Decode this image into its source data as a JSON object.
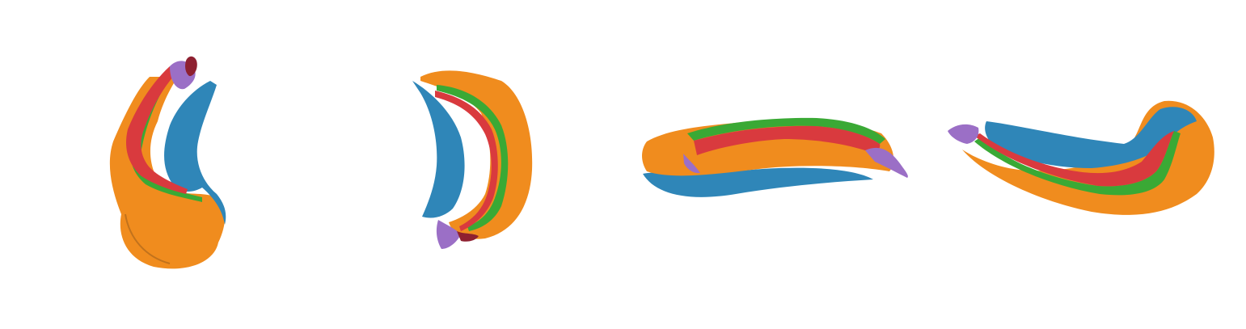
{
  "figure": {
    "description_visible_text": "",
    "views": [
      {
        "id": "view-1",
        "name": "surface-view-lateral"
      },
      {
        "id": "view-2",
        "name": "surface-view-medial"
      },
      {
        "id": "view-3",
        "name": "surface-view-superior"
      },
      {
        "id": "view-4",
        "name": "surface-view-inferior"
      }
    ],
    "colors": {
      "background": "#ffffff",
      "orange": "#f08c1e",
      "blue": "#2f86b8",
      "green": "#3aa935",
      "red": "#d93a3e",
      "purple": "#9b6fc6",
      "dark_red": "#8e2030",
      "shadow": "#7a4a18"
    }
  }
}
